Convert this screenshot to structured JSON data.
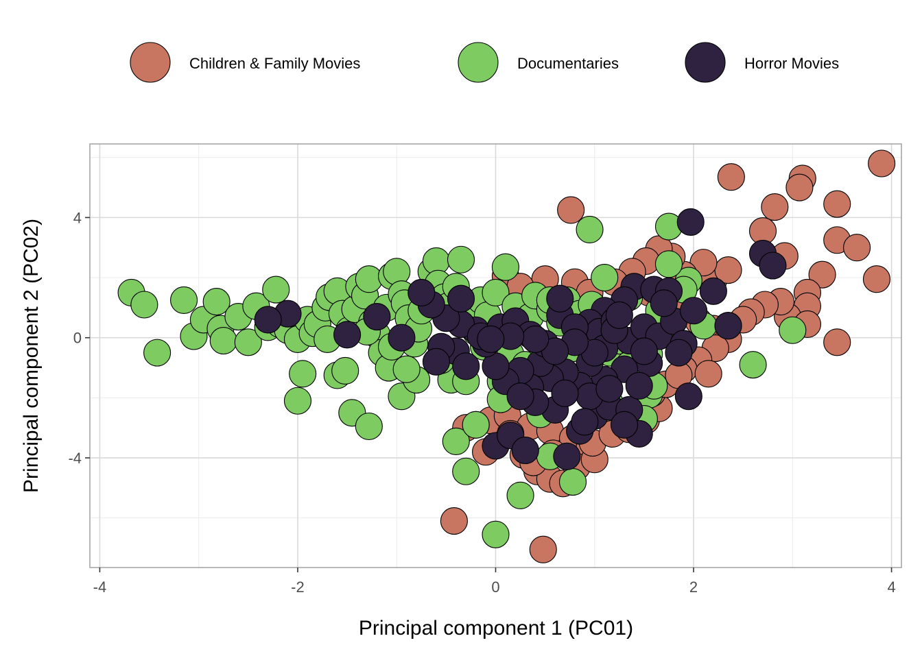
{
  "chart_data": {
    "type": "scatter",
    "title": "",
    "xlabel": "Principal component 1 (PC01)",
    "ylabel": "Principal component 2 (PC02)",
    "xlim": [
      -4.1,
      4.1
    ],
    "ylim": [
      -7.65,
      6.45
    ],
    "xticks": [
      -4,
      -2,
      0,
      2,
      4
    ],
    "xtick_labels": [
      "-4",
      "-2",
      "0",
      "2",
      "4"
    ],
    "yticks": [
      -4,
      0,
      4
    ],
    "ytick_labels": [
      "-4",
      "0",
      "4"
    ],
    "grid": true,
    "legend_position": "top",
    "series": [
      {
        "name": "Children & Family Movies",
        "color": "#c87562",
        "points": [
          [
            3.9,
            5.8
          ],
          [
            2.38,
            5.35
          ],
          [
            3.1,
            5.3
          ],
          [
            3.07,
            5.0
          ],
          [
            2.82,
            4.35
          ],
          [
            3.45,
            4.45
          ],
          [
            0.76,
            4.25
          ],
          [
            2.7,
            3.55
          ],
          [
            3.45,
            3.25
          ],
          [
            3.65,
            3.0
          ],
          [
            2.92,
            2.72
          ],
          [
            3.3,
            2.1
          ],
          [
            3.85,
            1.95
          ],
          [
            3.15,
            1.5
          ],
          [
            3.15,
            1.05
          ],
          [
            2.95,
            0.7
          ],
          [
            3.15,
            0.45
          ],
          [
            3.45,
            -0.15
          ],
          [
            2.88,
            1.2
          ],
          [
            2.72,
            1.1
          ],
          [
            2.58,
            0.85
          ],
          [
            2.5,
            0.6
          ],
          [
            2.2,
            1.9
          ],
          [
            2.35,
            2.25
          ],
          [
            2.1,
            2.5
          ],
          [
            1.9,
            2.1
          ],
          [
            1.78,
            2.7
          ],
          [
            1.65,
            2.95
          ],
          [
            1.52,
            2.55
          ],
          [
            1.38,
            2.2
          ],
          [
            1.2,
            1.85
          ],
          [
            1.55,
            1.5
          ],
          [
            1.72,
            1.2
          ],
          [
            1.88,
            0.9
          ],
          [
            2.05,
            0.55
          ],
          [
            2.2,
            0.3
          ],
          [
            2.35,
            -0.05
          ],
          [
            2.22,
            -0.35
          ],
          [
            2.05,
            -0.75
          ],
          [
            1.9,
            -1.05
          ],
          [
            2.15,
            -1.2
          ],
          [
            0.5,
            1.95
          ],
          [
            0.8,
            1.85
          ],
          [
            0.95,
            1.5
          ],
          [
            0.65,
            1.3
          ],
          [
            0.1,
            2.05
          ],
          [
            0.25,
            1.7
          ],
          [
            -0.05,
            -2.75
          ],
          [
            -0.2,
            -2.9
          ],
          [
            0.12,
            -2.6
          ],
          [
            0.35,
            -2.95
          ],
          [
            0.55,
            -3.1
          ],
          [
            0.78,
            -3.35
          ],
          [
            0.95,
            -3.6
          ],
          [
            0.28,
            -3.9
          ],
          [
            0.42,
            -4.45
          ],
          [
            0.55,
            -4.7
          ],
          [
            0.68,
            -4.85
          ],
          [
            0.82,
            -4.3
          ],
          [
            1.0,
            -4.05
          ],
          [
            0.58,
            -3.85
          ],
          [
            0.38,
            -4.15
          ],
          [
            0.98,
            -3.5
          ],
          [
            1.18,
            -3.2
          ],
          [
            1.35,
            -3.05
          ],
          [
            1.52,
            -2.75
          ],
          [
            1.65,
            -2.35
          ],
          [
            1.58,
            -1.85
          ],
          [
            1.72,
            -1.55
          ],
          [
            1.85,
            -1.25
          ],
          [
            -0.42,
            -6.1
          ],
          [
            0.48,
            -7.05
          ],
          [
            -0.1,
            -3.8
          ],
          [
            0.15,
            -3.2
          ],
          [
            -0.3,
            -3.0
          ]
        ]
      },
      {
        "name": "Documentaries",
        "color": "#7ecb62",
        "points": [
          [
            -3.68,
            1.5
          ],
          [
            -3.55,
            1.1
          ],
          [
            -3.42,
            -0.5
          ],
          [
            -3.15,
            1.25
          ],
          [
            -3.05,
            0.05
          ],
          [
            -2.95,
            0.6
          ],
          [
            -2.82,
            1.2
          ],
          [
            -2.78,
            0.3
          ],
          [
            -2.75,
            -0.1
          ],
          [
            -2.6,
            0.7
          ],
          [
            -2.5,
            -0.15
          ],
          [
            -2.42,
            1.05
          ],
          [
            -2.3,
            0.35
          ],
          [
            -2.22,
            1.6
          ],
          [
            -2.18,
            0.45
          ],
          [
            -2.1,
            0.25
          ],
          [
            -2.0,
            -0.05
          ],
          [
            -1.9,
            0.6
          ],
          [
            -1.85,
            0.15
          ],
          [
            -1.8,
            0.45
          ],
          [
            -1.72,
            1.0
          ],
          [
            -1.68,
            1.35
          ],
          [
            -1.6,
            1.55
          ],
          [
            -1.55,
            0.8
          ],
          [
            -1.48,
            0.25
          ],
          [
            -1.42,
            0.95
          ],
          [
            -1.38,
            1.7
          ],
          [
            -1.32,
            1.4
          ],
          [
            -1.28,
            1.95
          ],
          [
            -1.25,
            0.5
          ],
          [
            -1.2,
            0.1
          ],
          [
            -1.15,
            -0.5
          ],
          [
            -1.1,
            1.0
          ],
          [
            -1.05,
            2.05
          ],
          [
            -1.0,
            2.2
          ],
          [
            -0.95,
            1.45
          ],
          [
            -0.92,
            1.15
          ],
          [
            -0.88,
            0.65
          ],
          [
            -0.82,
            -0.2
          ],
          [
            -0.78,
            0.3
          ],
          [
            -0.75,
            0.9
          ],
          [
            -0.65,
            2.2
          ],
          [
            -0.6,
            2.55
          ],
          [
            -0.58,
            1.8
          ],
          [
            -0.52,
            1.35
          ],
          [
            -0.48,
            1.05
          ],
          [
            -0.45,
            -1.4
          ],
          [
            -0.4,
            1.7
          ],
          [
            -0.35,
            2.6
          ],
          [
            -0.35,
            0.45
          ],
          [
            -0.3,
            -1.45
          ],
          [
            -0.25,
            0.65
          ],
          [
            -0.2,
            0.2
          ],
          [
            -0.15,
            1.25
          ],
          [
            -0.12,
            -0.3
          ],
          [
            -0.08,
            0.75
          ],
          [
            0.0,
            1.5
          ],
          [
            0.05,
            -1.45
          ],
          [
            0.1,
            2.35
          ],
          [
            0.15,
            -0.55
          ],
          [
            0.2,
            1.05
          ],
          [
            0.25,
            0.35
          ],
          [
            0.3,
            -0.9
          ],
          [
            0.35,
            0.7
          ],
          [
            0.4,
            1.4
          ],
          [
            0.45,
            -0.2
          ],
          [
            0.55,
            0.95
          ],
          [
            0.6,
            -0.7
          ],
          [
            0.65,
            0.5
          ],
          [
            0.72,
            1.25
          ],
          [
            0.78,
            -0.35
          ],
          [
            0.85,
            0.8
          ],
          [
            0.95,
            3.6
          ],
          [
            0.97,
            1.1
          ],
          [
            1.05,
            0.35
          ],
          [
            1.1,
            2.0
          ],
          [
            1.15,
            -0.5
          ],
          [
            1.2,
            0.6
          ],
          [
            1.25,
            -0.1
          ],
          [
            1.35,
            1.35
          ],
          [
            1.4,
            -0.3
          ],
          [
            1.55,
            -1.9
          ],
          [
            1.6,
            -1.6
          ],
          [
            1.65,
            0.9
          ],
          [
            1.75,
            3.7
          ],
          [
            1.85,
            -0.2
          ],
          [
            1.95,
            1.9
          ],
          [
            2.1,
            0.4
          ],
          [
            2.6,
            -0.9
          ],
          [
            3.0,
            0.25
          ],
          [
            -2.0,
            -2.1
          ],
          [
            -1.95,
            -1.2
          ],
          [
            -1.6,
            -1.25
          ],
          [
            -1.52,
            -1.1
          ],
          [
            -1.45,
            -2.5
          ],
          [
            -1.28,
            -2.95
          ],
          [
            -1.08,
            -1.0
          ],
          [
            -0.95,
            -1.95
          ],
          [
            -0.8,
            -1.4
          ],
          [
            -0.4,
            -3.45
          ],
          [
            -0.3,
            -4.45
          ],
          [
            -0.2,
            -2.9
          ],
          [
            0.0,
            -6.55
          ],
          [
            0.25,
            -5.25
          ],
          [
            0.55,
            -3.95
          ],
          [
            0.78,
            -4.8
          ],
          [
            0.45,
            -2.55
          ],
          [
            0.05,
            -2.05
          ],
          [
            -1.05,
            -0.3
          ],
          [
            -0.9,
            -1.05
          ],
          [
            -1.7,
            -0.05
          ],
          [
            -1.3,
            0.2
          ],
          [
            -0.55,
            -0.75
          ],
          [
            0.55,
            1.25
          ],
          [
            1.75,
            2.45
          ],
          [
            1.55,
            -0.55
          ],
          [
            1.9,
            1.6
          ],
          [
            1.15,
            -2.15
          ],
          [
            1.5,
            -2.7
          ],
          [
            1.35,
            -0.9
          ]
        ]
      },
      {
        "name": "Horror Movies",
        "color": "#2e2240",
        "points": [
          [
            1.97,
            3.85
          ],
          [
            2.7,
            2.8
          ],
          [
            2.8,
            2.4
          ],
          [
            1.4,
            1.7
          ],
          [
            1.6,
            1.6
          ],
          [
            1.75,
            1.55
          ],
          [
            2.2,
            1.55
          ],
          [
            1.3,
            1.25
          ],
          [
            1.1,
            0.9
          ],
          [
            0.95,
            0.5
          ],
          [
            1.05,
            0.2
          ],
          [
            1.2,
            0.55
          ],
          [
            1.35,
            -0.1
          ],
          [
            1.5,
            0.35
          ],
          [
            1.65,
            0.05
          ],
          [
            1.8,
            0.55
          ],
          [
            1.9,
            -0.2
          ],
          [
            2.0,
            0.9
          ],
          [
            2.35,
            0.4
          ],
          [
            1.95,
            -1.95
          ],
          [
            1.85,
            -0.5
          ],
          [
            1.55,
            -0.85
          ],
          [
            1.3,
            -1.05
          ],
          [
            1.1,
            -1.4
          ],
          [
            0.95,
            -0.85
          ],
          [
            0.85,
            -1.6
          ],
          [
            0.7,
            -1.15
          ],
          [
            0.55,
            -1.35
          ],
          [
            0.45,
            -0.85
          ],
          [
            0.35,
            -1.65
          ],
          [
            0.25,
            -1.1
          ],
          [
            0.1,
            -1.45
          ],
          [
            0.0,
            -0.95
          ],
          [
            -0.1,
            -0.2
          ],
          [
            -0.2,
            0.25
          ],
          [
            -0.35,
            0.45
          ],
          [
            -0.5,
            0.65
          ],
          [
            -0.65,
            1.1
          ],
          [
            -0.75,
            1.5
          ],
          [
            -0.4,
            -0.45
          ],
          [
            -0.55,
            -0.3
          ],
          [
            -0.6,
            -0.8
          ],
          [
            -0.3,
            -0.95
          ],
          [
            -0.15,
            0.05
          ],
          [
            0.05,
            0.35
          ],
          [
            0.2,
            0.55
          ],
          [
            0.35,
            0.1
          ],
          [
            0.5,
            -0.2
          ],
          [
            0.65,
            0.75
          ],
          [
            0.8,
            0.35
          ],
          [
            -0.95,
            0.0
          ],
          [
            -1.2,
            0.7
          ],
          [
            -1.5,
            0.1
          ],
          [
            -2.1,
            0.8
          ],
          [
            -2.3,
            0.6
          ],
          [
            -0.35,
            1.3
          ],
          [
            0.65,
            1.3
          ],
          [
            0.0,
            -3.6
          ],
          [
            0.15,
            -3.25
          ],
          [
            0.3,
            -3.75
          ],
          [
            0.72,
            -3.95
          ],
          [
            0.85,
            -3.1
          ],
          [
            1.0,
            -2.6
          ],
          [
            1.15,
            -2.3
          ],
          [
            1.35,
            -2.4
          ],
          [
            1.45,
            -3.2
          ],
          [
            1.3,
            -2.9
          ],
          [
            0.95,
            -1.95
          ],
          [
            1.15,
            -1.7
          ],
          [
            1.45,
            -1.6
          ],
          [
            0.6,
            -2.4
          ],
          [
            0.4,
            -2.15
          ],
          [
            0.25,
            -1.95
          ],
          [
            0.7,
            -1.85
          ],
          [
            0.9,
            -2.8
          ],
          [
            1.1,
            -0.35
          ],
          [
            1.2,
            0.25
          ],
          [
            1.0,
            -0.5
          ],
          [
            0.8,
            -0.15
          ],
          [
            0.6,
            -0.45
          ],
          [
            0.4,
            -0.05
          ],
          [
            0.15,
            0.05
          ],
          [
            -0.05,
            -0.05
          ],
          [
            2.35,
            0.4
          ],
          [
            1.7,
            1.15
          ],
          [
            1.5,
            -0.45
          ],
          [
            1.25,
            0.75
          ]
        ]
      }
    ]
  }
}
